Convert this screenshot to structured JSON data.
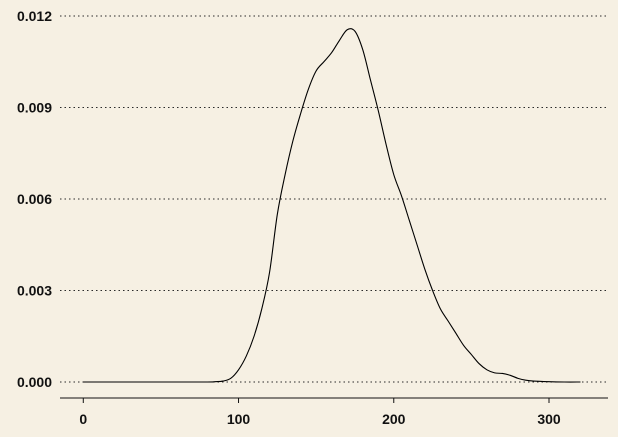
{
  "chart_data": {
    "type": "line",
    "title": "",
    "xlabel": "",
    "ylabel": "",
    "xlim": [
      -15,
      338
    ],
    "ylim": [
      -0.0005,
      0.0122
    ],
    "x_ticks": [
      0,
      100,
      200,
      300
    ],
    "x_tick_labels": [
      "0",
      "100",
      "200",
      "300"
    ],
    "y_ticks": [
      0.0,
      0.003,
      0.006,
      0.009,
      0.012
    ],
    "y_tick_labels": [
      "0.000",
      "0.003",
      "0.006",
      "0.009",
      "0.012"
    ],
    "grid": {
      "x": false,
      "y": true,
      "style": "dotted"
    },
    "legend": "none",
    "colors": {
      "background": "#f6f0e3",
      "line": "#000000",
      "text": "#111111"
    },
    "series": [
      {
        "x": [
          0,
          20,
          40,
          60,
          80,
          85,
          90,
          95,
          100,
          105,
          110,
          115,
          120,
          125,
          130,
          135,
          140,
          145,
          150,
          155,
          160,
          165,
          170,
          175,
          180,
          185,
          190,
          195,
          200,
          205,
          210,
          215,
          220,
          225,
          230,
          235,
          240,
          245,
          250,
          255,
          260,
          265,
          270,
          275,
          280,
          285,
          290,
          300,
          310,
          320
        ],
        "y": [
          0.0,
          0.0,
          0.0,
          0.0,
          0.0,
          1e-05,
          3e-05,
          0.00012,
          0.0004,
          0.00085,
          0.0015,
          0.0024,
          0.0036,
          0.0055,
          0.0068,
          0.0079,
          0.0088,
          0.0096,
          0.0102,
          0.0105,
          0.0108,
          0.0112,
          0.01155,
          0.0115,
          0.0109,
          0.0099,
          0.0089,
          0.0078,
          0.0068,
          0.0061,
          0.0053,
          0.0045,
          0.0037,
          0.003,
          0.0024,
          0.002,
          0.0016,
          0.0012,
          0.0009,
          0.0006,
          0.0004,
          0.0003,
          0.00028,
          0.00022,
          0.00012,
          6e-05,
          3e-05,
          1e-05,
          0.0,
          0.0
        ]
      }
    ]
  }
}
